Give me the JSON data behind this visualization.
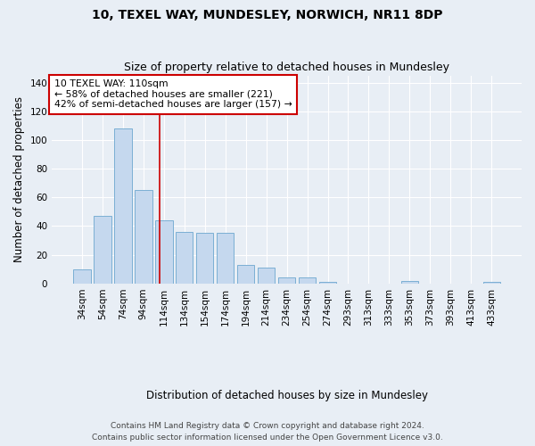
{
  "title1": "10, TEXEL WAY, MUNDESLEY, NORWICH, NR11 8DP",
  "title2": "Size of property relative to detached houses in Mundesley",
  "xlabel": "Distribution of detached houses by size in Mundesley",
  "ylabel": "Number of detached properties",
  "categories": [
    "34sqm",
    "54sqm",
    "74sqm",
    "94sqm",
    "114sqm",
    "134sqm",
    "154sqm",
    "174sqm",
    "194sqm",
    "214sqm",
    "234sqm",
    "254sqm",
    "274sqm",
    "293sqm",
    "313sqm",
    "333sqm",
    "353sqm",
    "373sqm",
    "393sqm",
    "413sqm",
    "433sqm"
  ],
  "values": [
    10,
    47,
    108,
    65,
    44,
    36,
    35,
    35,
    13,
    11,
    4,
    4,
    1,
    0,
    0,
    0,
    2,
    0,
    0,
    0,
    1
  ],
  "bar_color": "#c5d8ee",
  "bar_edge_color": "#7bafd4",
  "vline_x": 3.8,
  "annotation_text": "10 TEXEL WAY: 110sqm\n← 58% of detached houses are smaller (221)\n42% of semi-detached houses are larger (157) →",
  "annotation_box_color": "#ffffff",
  "annotation_box_edge": "#cc0000",
  "vline_color": "#cc0000",
  "ylim": [
    0,
    145
  ],
  "yticks": [
    0,
    20,
    40,
    60,
    80,
    100,
    120,
    140
  ],
  "footer1": "Contains HM Land Registry data © Crown copyright and database right 2024.",
  "footer2": "Contains public sector information licensed under the Open Government Licence v3.0.",
  "bg_color": "#e8eef5",
  "plot_bg": "#e8eef5",
  "grid_color": "#ffffff",
  "title1_fontsize": 10,
  "title2_fontsize": 9,
  "xlabel_fontsize": 8.5,
  "ylabel_fontsize": 8.5,
  "tick_fontsize": 7.5,
  "annotation_fontsize": 7.8,
  "footer_fontsize": 6.5
}
